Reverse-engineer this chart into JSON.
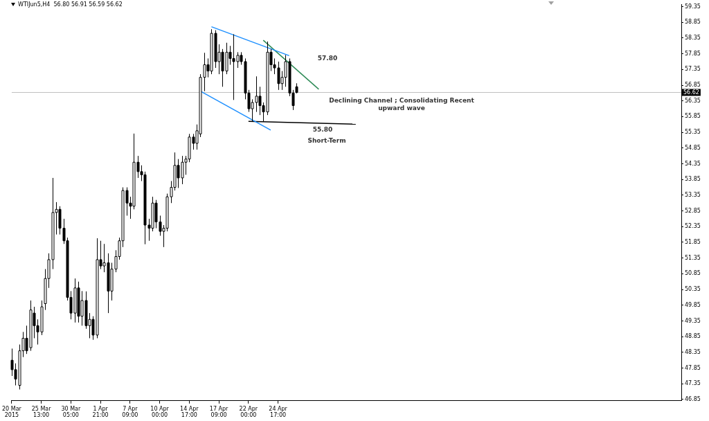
{
  "chart_data": {
    "type": "candlestick",
    "title": "WTIJun5,H4  56.80 56.91 56.59 56.62",
    "categories": [
      "20 Mar 2015",
      null,
      null,
      null,
      null,
      null,
      null,
      null,
      "25 Mar 13:00",
      null,
      null,
      null,
      null,
      null,
      null,
      null,
      "30 Mar 05:00",
      null,
      null,
      null,
      null,
      null,
      null,
      null,
      "1 Apr 21:00",
      null,
      null,
      null,
      null,
      null,
      null,
      null,
      "7 Apr 09:00",
      null,
      null,
      null,
      null,
      null,
      null,
      null,
      "10 Apr 00:00",
      null,
      null,
      null,
      null,
      null,
      null,
      null,
      "14 Apr 17:00",
      null,
      null,
      null,
      null,
      null,
      null,
      null,
      "17 Apr 09:00",
      null,
      null,
      null,
      null,
      null,
      null,
      null,
      "22 Apr 00:00",
      null,
      null,
      null,
      null,
      null,
      null,
      null,
      "24 Apr 17:00",
      null,
      null,
      null,
      null,
      null,
      null,
      null,
      null,
      null,
      null,
      null,
      null,
      null,
      null,
      null,
      null,
      null,
      null,
      null,
      null,
      null,
      null,
      null,
      null,
      null,
      null,
      null,
      null,
      null,
      null,
      null,
      null,
      null,
      null,
      null,
      null,
      null,
      null,
      null,
      null,
      null,
      null,
      null,
      null,
      null,
      null,
      null,
      null,
      null,
      null,
      null,
      null,
      null,
      null,
      null,
      null,
      null,
      null,
      null,
      null,
      null,
      null,
      null,
      null,
      null,
      null,
      null,
      null,
      null,
      null,
      null,
      null,
      null,
      null,
      null,
      null,
      null,
      null,
      null,
      null,
      null,
      null,
      null,
      null,
      null,
      null,
      null,
      null,
      null,
      null,
      null,
      null,
      null,
      null,
      null,
      null,
      null,
      null,
      null,
      null,
      null,
      null,
      null,
      null,
      null,
      null,
      null,
      null,
      null
    ],
    "ohlc": [
      [
        48.1,
        48.47,
        47.6,
        47.8
      ],
      [
        47.8,
        48.0,
        47.3,
        47.5
      ],
      [
        47.3,
        48.6,
        47.17,
        48.4
      ],
      [
        48.4,
        49.0,
        48.2,
        48.8
      ],
      [
        48.8,
        49.2,
        48.3,
        48.4
      ],
      [
        48.5,
        50.0,
        48.4,
        49.7
      ],
      [
        49.6,
        49.8,
        48.8,
        49.2
      ],
      [
        49.2,
        49.4,
        48.6,
        49.0
      ],
      [
        49.0,
        50.0,
        48.9,
        49.8
      ],
      [
        49.9,
        51.0,
        49.7,
        50.7
      ],
      [
        50.7,
        51.5,
        50.4,
        51.3
      ],
      [
        51.3,
        53.9,
        51.0,
        52.8
      ],
      [
        52.8,
        53.13,
        52.1,
        52.9
      ],
      [
        52.9,
        53.0,
        52.1,
        52.3
      ],
      [
        52.3,
        52.6,
        51.8,
        51.9
      ],
      [
        51.9,
        52.0,
        50.0,
        50.1
      ],
      [
        50.1,
        50.3,
        49.4,
        49.6
      ],
      [
        49.6,
        50.7,
        49.3,
        50.4
      ],
      [
        50.4,
        50.6,
        49.3,
        49.5
      ],
      [
        49.5,
        50.3,
        49.2,
        50.0
      ],
      [
        50.0,
        50.29,
        49.1,
        49.2
      ],
      [
        49.2,
        49.6,
        48.8,
        49.4
      ],
      [
        49.4,
        49.5,
        48.75,
        48.9
      ],
      [
        48.9,
        51.98,
        48.8,
        51.3
      ],
      [
        51.3,
        51.9,
        51.0,
        51.1
      ],
      [
        51.1,
        51.8,
        50.9,
        51.2
      ],
      [
        51.2,
        51.5,
        49.6,
        50.3
      ],
      [
        50.3,
        51.2,
        50.0,
        51.0
      ],
      [
        51.0,
        51.6,
        50.9,
        51.4
      ],
      [
        51.4,
        52.0,
        51.3,
        51.9
      ],
      [
        51.9,
        53.6,
        51.7,
        53.5
      ],
      [
        53.5,
        53.6,
        52.7,
        53.1
      ],
      [
        53.1,
        53.3,
        52.6,
        53.0
      ],
      [
        53.0,
        55.31,
        52.9,
        54.4
      ],
      [
        54.4,
        54.6,
        53.9,
        54.1
      ],
      [
        54.1,
        54.3,
        53.8,
        54.0
      ],
      [
        54.0,
        54.1,
        51.79,
        52.4
      ],
      [
        52.4,
        52.6,
        51.9,
        52.3
      ],
      [
        52.3,
        53.3,
        52.2,
        53.1
      ],
      [
        53.1,
        53.2,
        52.3,
        52.5
      ],
      [
        52.5,
        52.7,
        52.06,
        52.2
      ],
      [
        52.2,
        52.4,
        51.7,
        52.3
      ],
      [
        52.3,
        53.4,
        52.2,
        53.3
      ],
      [
        53.3,
        53.8,
        53.1,
        53.6
      ],
      [
        53.6,
        54.71,
        53.5,
        54.3
      ],
      [
        54.3,
        54.5,
        53.58,
        53.9
      ],
      [
        53.9,
        54.6,
        53.7,
        54.4
      ],
      [
        54.4,
        54.6,
        54.0,
        54.5
      ],
      [
        54.5,
        55.3,
        54.4,
        55.2
      ],
      [
        55.2,
        55.3,
        54.8,
        55.0
      ],
      [
        55.0,
        55.6,
        54.8,
        55.4
      ],
      [
        55.3,
        57.2,
        55.2,
        57.1
      ],
      [
        57.1,
        57.88,
        56.66,
        57.5
      ],
      [
        57.5,
        57.7,
        57.1,
        57.3
      ],
      [
        57.3,
        58.63,
        57.2,
        58.5
      ],
      [
        58.5,
        58.6,
        57.4,
        57.6
      ],
      [
        57.6,
        58.15,
        57.2,
        57.9
      ],
      [
        57.9,
        58.0,
        56.8,
        57.3
      ],
      [
        57.3,
        58.2,
        57.2,
        57.9
      ],
      [
        57.9,
        58.1,
        57.5,
        57.7
      ],
      [
        57.7,
        58.47,
        56.38,
        57.6
      ],
      [
        57.6,
        57.9,
        57.4,
        57.8
      ],
      [
        57.8,
        57.9,
        57.5,
        57.6
      ],
      [
        57.6,
        57.7,
        56.4,
        56.6
      ],
      [
        56.6,
        56.7,
        56.0,
        56.1
      ],
      [
        56.1,
        56.4,
        55.7,
        56.3
      ],
      [
        56.3,
        57.13,
        56.0,
        56.5
      ],
      [
        56.5,
        56.8,
        55.9,
        56.2
      ],
      [
        56.2,
        56.3,
        55.7,
        56.0
      ],
      [
        56.0,
        58.24,
        55.9,
        57.9
      ],
      [
        57.9,
        58.0,
        57.3,
        57.5
      ],
      [
        57.5,
        57.7,
        57.2,
        57.4
      ],
      [
        57.4,
        57.6,
        56.7,
        56.9
      ],
      [
        56.9,
        57.3,
        56.7,
        57.1
      ],
      [
        57.1,
        57.81,
        56.8,
        57.6
      ],
      [
        57.6,
        57.7,
        56.5,
        56.6
      ],
      [
        56.6,
        56.7,
        56.06,
        56.2
      ],
      [
        56.8,
        56.91,
        56.59,
        56.62
      ],
      null,
      null,
      null,
      null,
      null,
      null,
      null,
      null,
      null,
      null,
      null,
      null,
      null,
      null,
      null,
      null,
      null,
      null,
      null,
      null,
      null,
      null,
      null,
      null,
      null,
      null,
      null,
      null,
      null,
      null,
      null,
      null,
      null,
      null,
      null,
      null,
      null,
      null,
      null,
      null,
      null,
      null,
      null,
      null,
      null,
      null,
      null,
      null,
      null,
      null,
      null,
      null,
      null,
      null,
      null,
      null,
      null,
      null,
      null,
      null,
      null,
      null,
      null,
      null,
      null,
      null,
      null,
      null,
      null,
      null,
      null,
      null,
      null,
      null,
      null,
      null,
      null,
      null,
      null,
      null,
      null,
      null,
      null,
      null,
      null,
      null,
      null,
      null,
      null,
      null,
      null,
      null,
      null,
      null,
      null,
      null,
      null,
      null,
      null,
      null,
      null,
      null,
      null,
      null
    ],
    "series": [
      {
        "type": "line",
        "color": "#1e90ff",
        "values": [
          null,
          null,
          null,
          null,
          null,
          null,
          null,
          null,
          null,
          null,
          null,
          null,
          null,
          null,
          null,
          null,
          null,
          null,
          null,
          null,
          null,
          null,
          null,
          null,
          null,
          null,
          null,
          null,
          null,
          null,
          null,
          null,
          null,
          null,
          null,
          null,
          null,
          null,
          null,
          null,
          null,
          null,
          null,
          null,
          null,
          null,
          null,
          null,
          null,
          null,
          null,
          null,
          null,
          null,
          58.71,
          null,
          null,
          null,
          null,
          null,
          null,
          null,
          null,
          null,
          null,
          null,
          null,
          null,
          null,
          null,
          null,
          null,
          null,
          null,
          null,
          57.79,
          null,
          null,
          null,
          null,
          null,
          null,
          null,
          null,
          null,
          null,
          null,
          null,
          null,
          null,
          null,
          null,
          null,
          null,
          null,
          null,
          null,
          null,
          null,
          null,
          null,
          null,
          null,
          null,
          null,
          null,
          null,
          null,
          null,
          null,
          null,
          null,
          null,
          null,
          null,
          null,
          null,
          null,
          null,
          null,
          null,
          null,
          null,
          null,
          null,
          null,
          null,
          null,
          null,
          null,
          null,
          null,
          null,
          null,
          null,
          null,
          null,
          null,
          null,
          null,
          null,
          null,
          null,
          null,
          null,
          null,
          null,
          null,
          null,
          null,
          null,
          null,
          null,
          null,
          null,
          null,
          null,
          null,
          null,
          null,
          null,
          null,
          null,
          null,
          null,
          null,
          null,
          null,
          null,
          null,
          null,
          null,
          null,
          null,
          null,
          null,
          null,
          null,
          null,
          null,
          null,
          null
        ]
      },
      {
        "type": "line",
        "color": "#1e90ff",
        "values": [
          null,
          null,
          null,
          null,
          null,
          null,
          null,
          null,
          null,
          null,
          null,
          null,
          null,
          null,
          null,
          null,
          null,
          null,
          null,
          null,
          null,
          null,
          null,
          null,
          null,
          null,
          null,
          null,
          null,
          null,
          null,
          null,
          null,
          null,
          null,
          null,
          null,
          null,
          null,
          null,
          null,
          null,
          null,
          null,
          null,
          null,
          null,
          null,
          null,
          null,
          null,
          56.66,
          null,
          null,
          null,
          null,
          null,
          null,
          null,
          null,
          null,
          null,
          null,
          null,
          null,
          null,
          null,
          null,
          null,
          null,
          55.42,
          null,
          null,
          null,
          null,
          null,
          null,
          null,
          null,
          null,
          null,
          null,
          null,
          null,
          null,
          null,
          null,
          null,
          null,
          null,
          null,
          null,
          null,
          null,
          null,
          null,
          null,
          null,
          null,
          null,
          null,
          null,
          null,
          null,
          null,
          null,
          null,
          null,
          null,
          null,
          null,
          null,
          null,
          null,
          null,
          null,
          null,
          null,
          null,
          null,
          null,
          null,
          null,
          null,
          null,
          null,
          null,
          null,
          null,
          null,
          null,
          null,
          null,
          null,
          null,
          null,
          null,
          null,
          null,
          null,
          null,
          null,
          null,
          null,
          null,
          null,
          null,
          null,
          null,
          null,
          null,
          null,
          null,
          null,
          null,
          null,
          null,
          null,
          null,
          null,
          null,
          null,
          null,
          null,
          null,
          null,
          null,
          null,
          null,
          null,
          null,
          null,
          null,
          null,
          null,
          null,
          null,
          null,
          null,
          null,
          null,
          null
        ]
      },
      {
        "type": "line",
        "color": "#2e8b57",
        "values": [
          null,
          null,
          null,
          null,
          null,
          null,
          null,
          null,
          null,
          null,
          null,
          null,
          null,
          null,
          null,
          null,
          null,
          null,
          null,
          null,
          null,
          null,
          null,
          null,
          null,
          null,
          null,
          null,
          null,
          null,
          null,
          null,
          null,
          null,
          null,
          null,
          null,
          null,
          null,
          null,
          null,
          null,
          null,
          null,
          null,
          null,
          null,
          null,
          null,
          null,
          null,
          null,
          null,
          null,
          null,
          null,
          null,
          null,
          null,
          null,
          null,
          null,
          null,
          null,
          null,
          null,
          null,
          null,
          58.28,
          null,
          null,
          null,
          null,
          null,
          null,
          null,
          null,
          null,
          null,
          null,
          null,
          null,
          null,
          56.72,
          null,
          null,
          null,
          null,
          null,
          null,
          null,
          null,
          null,
          null,
          null,
          null,
          null,
          null,
          null,
          null,
          null,
          null,
          null,
          null,
          null,
          null,
          null,
          null,
          null,
          null,
          null,
          null,
          null,
          null,
          null,
          null,
          null,
          null,
          null,
          null,
          null,
          null,
          null,
          null,
          null,
          null,
          null,
          null,
          null,
          null,
          null,
          null,
          null,
          null,
          null,
          null,
          null,
          null,
          null,
          null,
          null,
          null,
          null,
          null,
          null,
          null,
          null,
          null,
          null,
          null,
          null,
          null,
          null,
          null,
          null,
          null,
          null,
          null,
          null,
          null,
          null,
          null,
          null,
          null,
          null,
          null,
          null,
          null,
          null,
          null,
          null,
          null,
          null,
          null,
          null,
          null,
          null,
          null,
          null,
          null,
          null,
          null
        ]
      },
      {
        "type": "line",
        "color": "#000000",
        "values": [
          null,
          null,
          null,
          null,
          null,
          null,
          null,
          null,
          null,
          null,
          null,
          null,
          null,
          null,
          null,
          null,
          null,
          null,
          null,
          null,
          null,
          null,
          null,
          null,
          null,
          null,
          null,
          null,
          null,
          null,
          null,
          null,
          null,
          null,
          null,
          null,
          null,
          null,
          null,
          null,
          null,
          null,
          null,
          null,
          null,
          null,
          null,
          null,
          null,
          null,
          null,
          null,
          null,
          null,
          null,
          null,
          null,
          null,
          null,
          null,
          null,
          null,
          null,
          null,
          55.7,
          null,
          null,
          null,
          null,
          null,
          null,
          null,
          null,
          null,
          null,
          null,
          null,
          null,
          null,
          null,
          null,
          null,
          null,
          null,
          null,
          null,
          null,
          null,
          null,
          null,
          null,
          null,
          null,
          55.61,
          null,
          null,
          null,
          null,
          null,
          null,
          null,
          null,
          null,
          null,
          null,
          null,
          null,
          null,
          null,
          null,
          null,
          null,
          null,
          null,
          null,
          null,
          null,
          null,
          null,
          null,
          null,
          null,
          null,
          null,
          null,
          null,
          null,
          null,
          null,
          null,
          null,
          null,
          null,
          null,
          null,
          null,
          null,
          null,
          null,
          null,
          null,
          null,
          null,
          null,
          null,
          null,
          null,
          null,
          null,
          null,
          null,
          null,
          null,
          null,
          null,
          null,
          null,
          null,
          null,
          null,
          null,
          null,
          null,
          null,
          null,
          null,
          null,
          null,
          null,
          null,
          null,
          null,
          null,
          null,
          null,
          null,
          null,
          null,
          null,
          null,
          null,
          null
        ]
      }
    ],
    "ylim": [
      46.81,
      59.41
    ],
    "yticks": [
      46.85,
      47.35,
      47.85,
      48.35,
      48.85,
      49.35,
      49.85,
      50.35,
      50.85,
      51.35,
      51.85,
      52.35,
      52.85,
      53.35,
      53.85,
      54.35,
      54.85,
      55.35,
      55.85,
      56.35,
      56.85,
      57.35,
      57.85,
      58.35,
      58.85,
      59.35
    ],
    "ref_lines": [
      {
        "axis": "y",
        "value": 56.62,
        "label": "56.62",
        "color": "#c0c0c0"
      }
    ],
    "annotations": [
      "57.80",
      "Declining Channel ; Consolidating Recent upward wave",
      "55.80",
      "Short-Term"
    ],
    "grid": false,
    "legend": false
  }
}
